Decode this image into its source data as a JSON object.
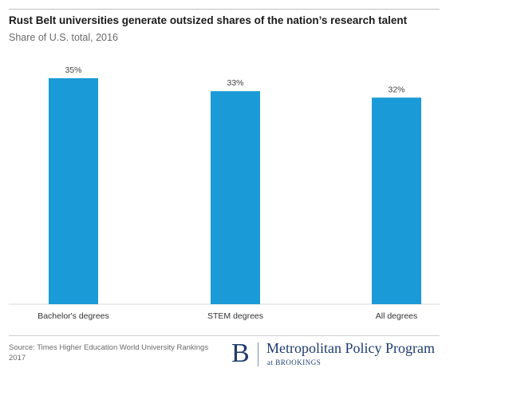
{
  "header": {
    "title": "Rust Belt universities generate outsized shares of the nation’s research talent",
    "subtitle": "Share of U.S. total, 2016"
  },
  "chart_data": {
    "type": "bar",
    "categories": [
      "Bachelor's degrees",
      "STEM degrees",
      "All degrees"
    ],
    "values": [
      35,
      33,
      32
    ],
    "data_labels": [
      "35%",
      "33%",
      "32%"
    ],
    "ylim": [
      0,
      35
    ],
    "grid": false,
    "bar_color": "#1a9ad6"
  },
  "footer": {
    "source": "Source: Times Higher Education World University Rankings 2017",
    "logo_letter": "B",
    "logo_name": "Metropolitan Policy Program",
    "logo_sub": "at BROOKINGS"
  },
  "colors": {
    "bar": "#1a9ad6",
    "brand": "#1f3c6e"
  }
}
